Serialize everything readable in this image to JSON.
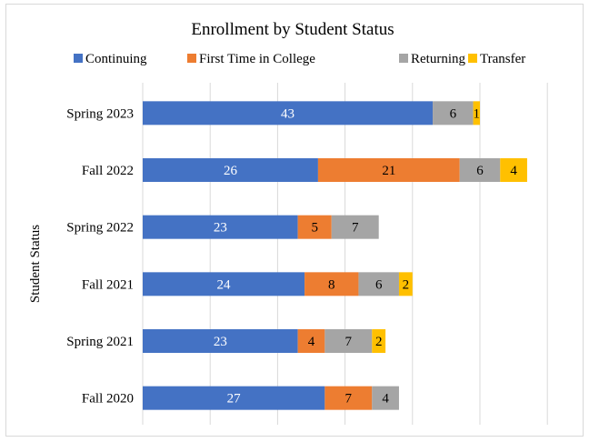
{
  "chart_data": {
    "type": "bar",
    "orientation": "horizontal",
    "stacked": true,
    "title": "Enrollment by Student Status",
    "ylabel": "Student Status",
    "xlabel": "",
    "categories": [
      "Spring 2023",
      "Fall 2022",
      "Spring 2022",
      "Fall 2021",
      "Spring 2021",
      "Fall 2020"
    ],
    "series": [
      {
        "name": "Continuing",
        "color": "#4472C4",
        "values": [
          43,
          26,
          23,
          24,
          23,
          27
        ]
      },
      {
        "name": "First Time in College",
        "color": "#ED7D31",
        "values": [
          null,
          21,
          5,
          8,
          4,
          7
        ]
      },
      {
        "name": "Returning",
        "color": "#A5A5A5",
        "values": [
          6,
          6,
          7,
          6,
          7,
          4
        ]
      },
      {
        "name": "Transfer",
        "color": "#FFC000",
        "values": [
          1,
          4,
          null,
          2,
          2,
          null
        ]
      }
    ],
    "xlim": [
      0,
      60
    ],
    "gridlines": true,
    "legend_position": "top",
    "data_labels": true
  }
}
